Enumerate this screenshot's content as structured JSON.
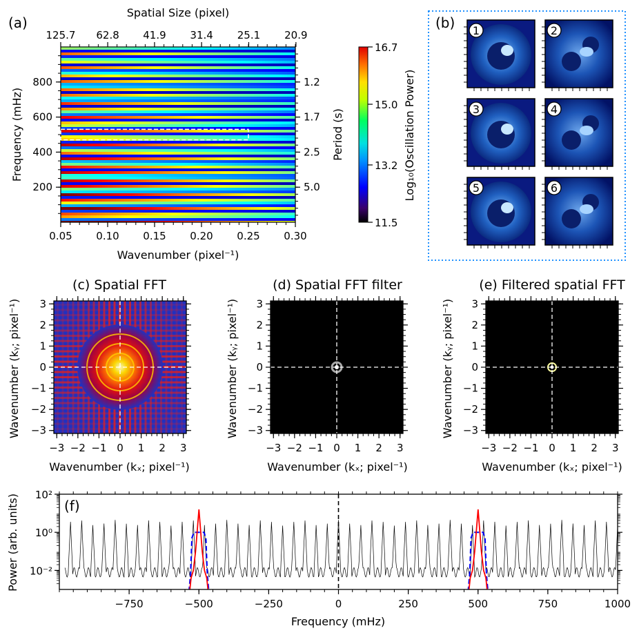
{
  "chart_data": [
    {
      "type": "heatmap",
      "panel_label": "(a)",
      "xlabel": "Wavenumber (pixel⁻¹)",
      "xticks": [
        "0.05",
        "0.10",
        "0.15",
        "0.20",
        "0.25",
        "0.30"
      ],
      "xlim": [
        0.05,
        0.3
      ],
      "ylabel": "Frequency (mHz)",
      "yticks": [
        "200",
        "400",
        "600",
        "800"
      ],
      "ylim": [
        0,
        1000
      ],
      "top_axis_label": "Spatial Size (pixel)",
      "top_ticks": [
        "125.7",
        "62.8",
        "41.9",
        "31.4",
        "25.1",
        "20.9"
      ],
      "right_axis_label": "Period (s)",
      "right_ticks": [
        "1.2",
        "1.7",
        "2.5",
        "5.0"
      ],
      "right_tick_positions_mHz": [
        800,
        600,
        400,
        200
      ],
      "filter_box": {
        "k_min": 0.05,
        "k_max": 0.25,
        "f_min": 470,
        "f_max": 530
      },
      "colorbar": {
        "label": "Log₁₀(Oscillation Power)",
        "ticks": [
          "16.7",
          "15.0",
          "13.2",
          "11.5"
        ],
        "range": [
          11.5,
          16.7
        ],
        "colormap": "jet"
      }
    },
    {
      "type": "image_grid",
      "panel_label": "(b)",
      "frames": [
        "1",
        "2",
        "3",
        "4",
        "5",
        "6"
      ],
      "border_color": "#1e90ff"
    },
    {
      "type": "heatmap",
      "title": "(c) Spatial FFT",
      "xlabel": "Wavenumber (kₓ; pixel⁻¹)",
      "ylabel": "Wavenumber (kᵧ; pixel⁻¹)",
      "ticks": [
        "−3",
        "−2",
        "−1",
        "0",
        "1",
        "2",
        "3"
      ],
      "xlim": [
        -3.14,
        3.14
      ],
      "ylim": [
        -3.14,
        3.14
      ]
    },
    {
      "type": "heatmap",
      "title": "(d) Spatial FFT filter",
      "xlabel": "Wavenumber (kₓ; pixel⁻¹)",
      "ylabel": "Wavenumber (kᵧ; pixel⁻¹)",
      "ticks": [
        "−3",
        "−2",
        "−1",
        "0",
        "1",
        "2",
        "3"
      ],
      "xlim": [
        -3.14,
        3.14
      ],
      "ylim": [
        -3.14,
        3.14
      ]
    },
    {
      "type": "heatmap",
      "title": "(e) Filtered spatial FFT",
      "xlabel": "Wavenumber (kₓ; pixel⁻¹)",
      "ylabel": "Wavenumber (kᵧ; pixel⁻¹)",
      "ticks": [
        "−3",
        "−2",
        "−1",
        "0",
        "1",
        "2",
        "3"
      ],
      "xlim": [
        -3.14,
        3.14
      ],
      "ylim": [
        -3.14,
        3.14
      ]
    },
    {
      "type": "line",
      "panel_label": "(f)",
      "xlabel": "Frequency (mHz)",
      "ylabel": "Power (arb. units)",
      "xticks": [
        "−750",
        "−500",
        "−250",
        "0",
        "250",
        "500",
        "750",
        "1000"
      ],
      "yticks": [
        "10²",
        "10⁰",
        "10⁻²"
      ],
      "xlim": [
        -1000,
        1000
      ],
      "ylim_log10": [
        -3,
        2
      ],
      "yscale": "log",
      "peak_spacing_mHz": 40,
      "peak_log10": 0.5,
      "base_log10": -2.1,
      "series": [
        {
          "name": "",
          "style": "black thin line",
          "color": "#000000",
          "x_start": -980,
          "x_end": 1000
        },
        {
          "name": "",
          "style": "blue dashed filter",
          "color": "#0000ff",
          "centers": [
            -500,
            500
          ],
          "half_width": 30,
          "plateau_log10": 0
        },
        {
          "name": "",
          "style": "red filtered peak",
          "color": "#ff0000",
          "centers": [
            -500,
            500
          ],
          "peak_log10": 1.2
        }
      ]
    }
  ]
}
